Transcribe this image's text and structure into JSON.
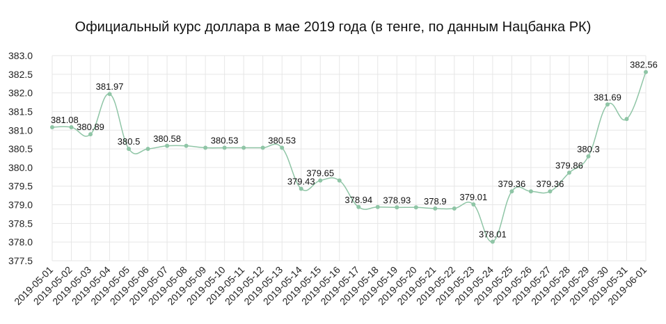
{
  "chart_data": {
    "type": "line",
    "title": "Официальный курс доллара в мае 2019 года (в тенге, по данным Нацбанка РК)",
    "xlabel": "",
    "ylabel": "",
    "ylim": [
      377.5,
      383.0
    ],
    "yticks": [
      "377.5",
      "378.0",
      "378.5",
      "379.0",
      "379.5",
      "380.0",
      "380.5",
      "381.0",
      "381.5",
      "382.0",
      "382.5",
      "383.0"
    ],
    "grid": true,
    "legend": "none",
    "categories": [
      "2019-05-01",
      "2019-05-02",
      "2019-05-03",
      "2019-05-04",
      "2019-05-05",
      "2019-05-06",
      "2019-05-07",
      "2019-05-08",
      "2019-05-09",
      "2019-05-10",
      "2019-05-11",
      "2019-05-12",
      "2019-05-13",
      "2019-05-14",
      "2019-05-15",
      "2019-05-16",
      "2019-05-17",
      "2019-05-18",
      "2019-05-19",
      "2019-05-20",
      "2019-05-21",
      "2019-05-22",
      "2019-05-23",
      "2019-05-24",
      "2019-05-25",
      "2019-05-26",
      "2019-05-27",
      "2019-05-28",
      "2019-05-29",
      "2019-05-30",
      "2019-05-31",
      "2019-06-01"
    ],
    "series": [
      {
        "values": [
          381.08,
          381.08,
          380.89,
          381.97,
          380.5,
          380.5,
          380.58,
          380.58,
          380.53,
          380.53,
          380.53,
          380.53,
          380.53,
          379.43,
          379.65,
          379.65,
          378.94,
          378.94,
          378.93,
          378.93,
          378.9,
          378.9,
          379.01,
          378.01,
          379.36,
          379.36,
          379.36,
          379.86,
          380.3,
          381.69,
          381.3,
          382.56
        ],
        "labels": [
          "381.08",
          "",
          "380.89",
          "381.97",
          "380.5",
          "",
          "380.58",
          "",
          "",
          "380.53",
          "",
          "",
          "380.53",
          "379.43",
          "379.65",
          "",
          "378.94",
          "",
          "378.93",
          "",
          "378.9",
          "",
          "379.01",
          "378.01",
          "379.36",
          "",
          "379.36",
          "379.86",
          "380.3",
          "381.69",
          "",
          "382.56"
        ]
      }
    ],
    "colors": {
      "line": "#8fc5a6",
      "point": "#8fc5a6",
      "grid": "#e6e6e6",
      "axis": "#cccccc"
    }
  }
}
